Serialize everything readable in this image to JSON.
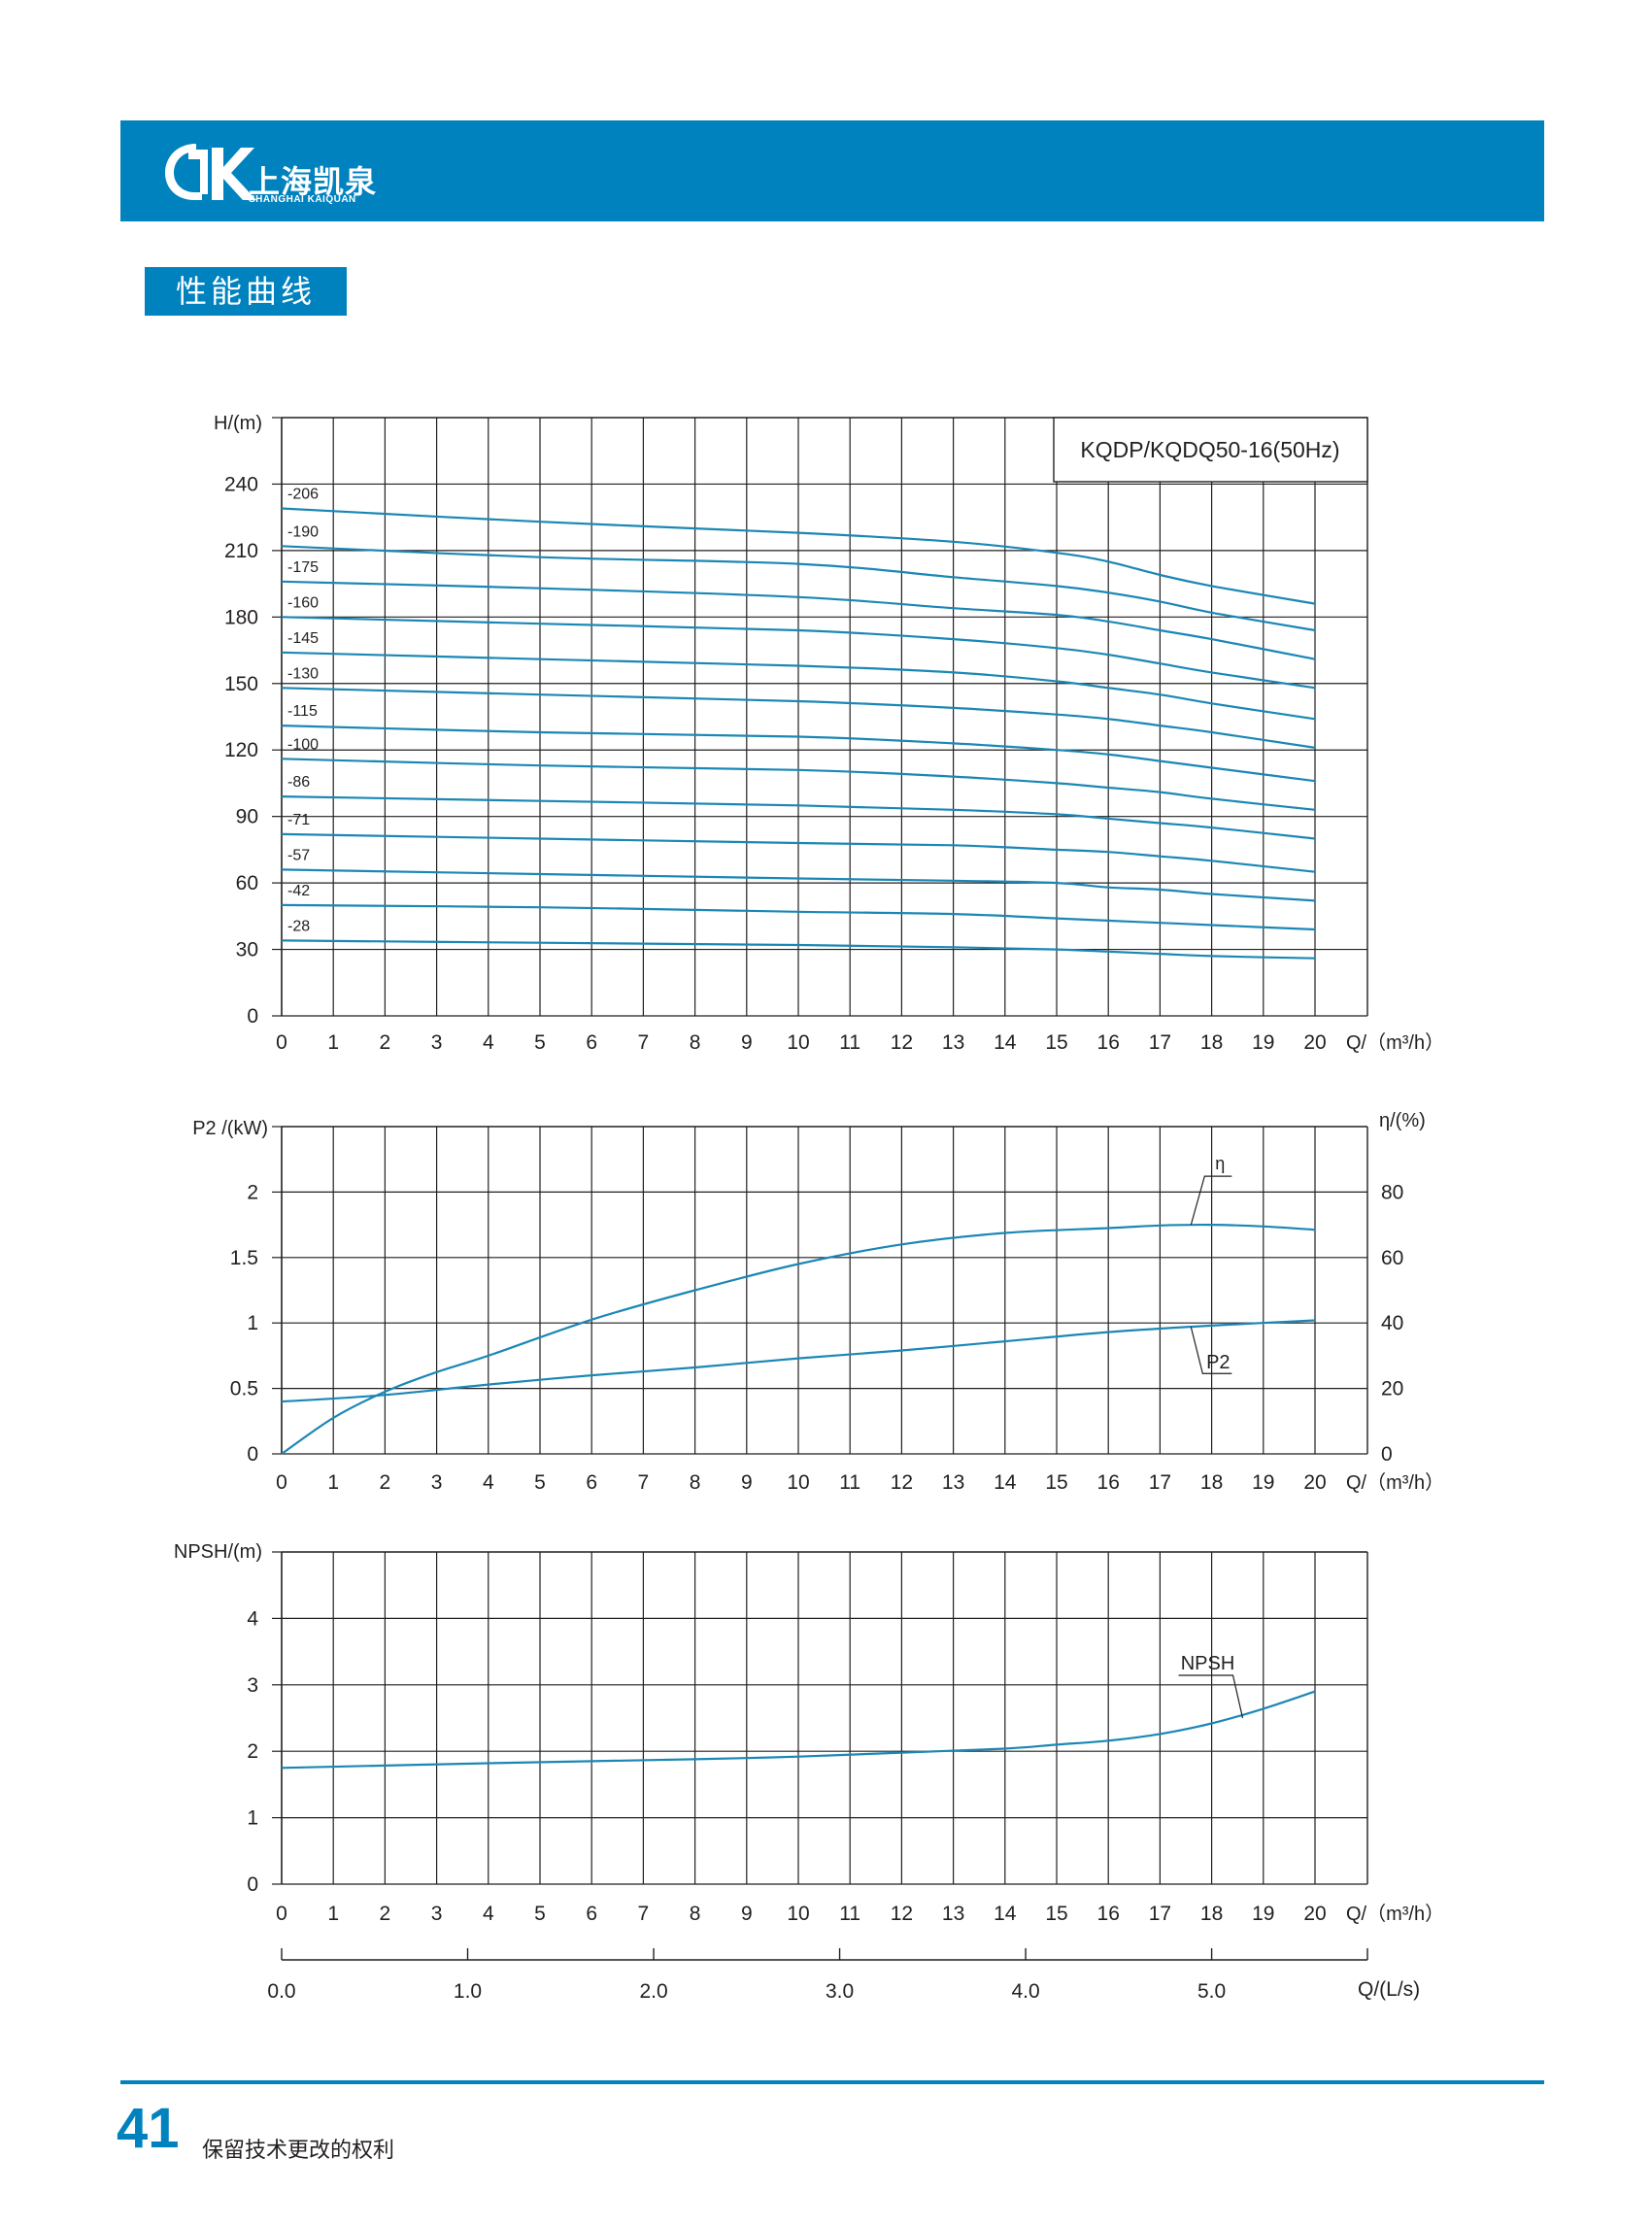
{
  "brand": {
    "name_cn": "上海凯泉",
    "name_en": "SHANGHAI KAIQUAN",
    "color": "#0082bf",
    "curve_color": "#1b87b5"
  },
  "section_title": "性能曲线",
  "footer": {
    "page_number": "41",
    "note": "保留技术更改的权利"
  },
  "chart_data": [
    {
      "type": "line",
      "id": "head",
      "title": "KQDP/KQDQ50-16(50Hz)",
      "ylabel": "H/(m)",
      "xlabel": "Q/（m³/h）",
      "xlim": [
        0,
        21
      ],
      "ylim": [
        0,
        270
      ],
      "x_ticks": [
        0,
        1,
        2,
        3,
        4,
        5,
        6,
        7,
        8,
        9,
        10,
        11,
        12,
        13,
        14,
        15,
        16,
        17,
        18,
        19,
        20
      ],
      "y_ticks": [
        0,
        30,
        60,
        90,
        120,
        150,
        180,
        210,
        240
      ],
      "grid": true,
      "series": [
        {
          "name": "-206",
          "x": [
            0,
            5,
            10,
            13,
            15,
            16,
            17,
            18,
            20
          ],
          "y": [
            229,
            223,
            218,
            214,
            209,
            205,
            199,
            194,
            186
          ]
        },
        {
          "name": "-190",
          "x": [
            0,
            5,
            10,
            13,
            15,
            16,
            17,
            18,
            20
          ],
          "y": [
            212,
            207,
            204,
            198,
            194,
            191,
            187,
            182,
            174
          ]
        },
        {
          "name": "-175",
          "x": [
            0,
            5,
            10,
            13,
            15,
            16,
            17,
            18,
            20
          ],
          "y": [
            196,
            193,
            189,
            184,
            181,
            178,
            174,
            170,
            161
          ]
        },
        {
          "name": "-160",
          "x": [
            0,
            5,
            10,
            13,
            15,
            16,
            17,
            18,
            20
          ],
          "y": [
            180,
            177,
            174,
            170,
            166,
            163,
            159,
            155,
            148
          ]
        },
        {
          "name": "-145",
          "x": [
            0,
            5,
            10,
            13,
            15,
            16,
            17,
            18,
            20
          ],
          "y": [
            164,
            161,
            158,
            155,
            151,
            148,
            145,
            141,
            134
          ]
        },
        {
          "name": "-130",
          "x": [
            0,
            5,
            10,
            13,
            15,
            16,
            17,
            18,
            20
          ],
          "y": [
            148,
            145,
            142,
            139,
            136,
            134,
            131,
            128,
            121
          ]
        },
        {
          "name": "-115",
          "x": [
            0,
            5,
            10,
            13,
            15,
            16,
            17,
            18,
            20
          ],
          "y": [
            131,
            128,
            126,
            123,
            120,
            118,
            115,
            112,
            106
          ]
        },
        {
          "name": "-100",
          "x": [
            0,
            5,
            10,
            13,
            15,
            16,
            17,
            18,
            20
          ],
          "y": [
            116,
            113,
            111,
            108,
            105,
            103,
            101,
            98,
            93
          ]
        },
        {
          "name": "-86",
          "x": [
            0,
            5,
            10,
            13,
            15,
            16,
            17,
            18,
            20
          ],
          "y": [
            99,
            97,
            95,
            93,
            91,
            89,
            87,
            85,
            80
          ]
        },
        {
          "name": "-71",
          "x": [
            0,
            5,
            10,
            13,
            15,
            16,
            17,
            18,
            20
          ],
          "y": [
            82,
            80,
            78,
            77,
            75,
            74,
            72,
            70,
            65
          ]
        },
        {
          "name": "-57",
          "x": [
            0,
            5,
            10,
            13,
            15,
            16,
            17,
            18,
            20
          ],
          "y": [
            66,
            64,
            62,
            61,
            60,
            58,
            57,
            55,
            52
          ]
        },
        {
          "name": "-42",
          "x": [
            0,
            5,
            10,
            13,
            15,
            16,
            17,
            18,
            20
          ],
          "y": [
            50,
            49,
            47,
            46,
            44,
            43,
            42,
            41,
            39
          ]
        },
        {
          "name": "-28",
          "x": [
            0,
            5,
            10,
            13,
            15,
            16,
            17,
            18,
            20
          ],
          "y": [
            34,
            33,
            32,
            31,
            30,
            29,
            28,
            27,
            26
          ]
        }
      ]
    },
    {
      "type": "line",
      "id": "power-efficiency",
      "ylabel": "P2 /(kW)",
      "y2label": "η/(%)",
      "xlabel": "Q/（m³/h）",
      "xlim": [
        0,
        21
      ],
      "ylim": [
        0,
        2.5
      ],
      "y2lim": [
        0,
        100
      ],
      "x_ticks": [
        0,
        1,
        2,
        3,
        4,
        5,
        6,
        7,
        8,
        9,
        10,
        11,
        12,
        13,
        14,
        15,
        16,
        17,
        18,
        19,
        20
      ],
      "y_ticks": [
        "0",
        "0.5",
        "1",
        "1.5",
        "2"
      ],
      "y2_ticks": [
        "0",
        "20",
        "40",
        "60",
        "80"
      ],
      "grid": true,
      "series": [
        {
          "name": "η",
          "axis": "right",
          "x": [
            0,
            1,
            2,
            3,
            4,
            6,
            8,
            10,
            12,
            14,
            16,
            17,
            18,
            19,
            20
          ],
          "y": [
            0,
            11,
            19,
            25,
            30,
            41,
            50,
            58,
            64,
            67.5,
            69,
            69.8,
            70,
            69.5,
            68.5
          ]
        },
        {
          "name": "P2",
          "axis": "left",
          "x": [
            0,
            2,
            4,
            6,
            8,
            10,
            12,
            14,
            16,
            18,
            20
          ],
          "y": [
            0.4,
            0.45,
            0.53,
            0.6,
            0.66,
            0.73,
            0.79,
            0.86,
            0.93,
            0.98,
            1.02
          ]
        }
      ],
      "annotations": [
        {
          "text": "η",
          "x": 17.6,
          "y": 70
        },
        {
          "text": "P2",
          "x": 17.6,
          "y": 0.97
        }
      ]
    },
    {
      "type": "line",
      "id": "npsh",
      "ylabel": "NPSH/(m)",
      "xlabel": "Q/（m³/h）",
      "xlim": [
        0,
        21
      ],
      "ylim": [
        0,
        5
      ],
      "x_ticks": [
        0,
        1,
        2,
        3,
        4,
        5,
        6,
        7,
        8,
        9,
        10,
        11,
        12,
        13,
        14,
        15,
        16,
        17,
        18,
        19,
        20
      ],
      "y_ticks": [
        0,
        1,
        2,
        3,
        4
      ],
      "grid": true,
      "series": [
        {
          "name": "NPSH",
          "x": [
            0,
            4,
            8,
            10,
            12,
            14,
            15,
            16,
            17,
            18,
            19,
            20
          ],
          "y": [
            1.75,
            1.82,
            1.88,
            1.92,
            1.98,
            2.04,
            2.1,
            2.16,
            2.26,
            2.42,
            2.64,
            2.9
          ]
        }
      ],
      "annotations": [
        {
          "text": "NPSH",
          "x": 18.6,
          "y": 2.5
        }
      ]
    }
  ],
  "secondary_axis": {
    "label": "Q/(L/s)",
    "ticks": [
      "0.0",
      "1.0",
      "2.0",
      "3.0",
      "4.0",
      "5.0"
    ],
    "values": [
      0,
      1,
      2,
      3,
      4,
      5
    ],
    "xlim_m3h": [
      0,
      21
    ]
  }
}
